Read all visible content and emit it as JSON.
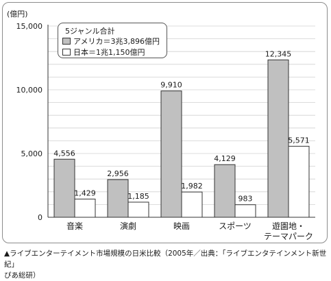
{
  "chart_data": {
    "type": "bar",
    "unit_label": "(億円)",
    "categories": [
      "音楽",
      "演劇",
      "映画",
      "スポーツ",
      "遊園地・テーマパーク"
    ],
    "category_lines": [
      [
        "音楽"
      ],
      [
        "演劇"
      ],
      [
        "映画"
      ],
      [
        "スポーツ"
      ],
      [
        "遊園地・",
        "テーマパーク"
      ]
    ],
    "series": [
      {
        "name": "アメリカ＝3兆3,896億円",
        "values": [
          4556,
          2956,
          9910,
          4129,
          12345
        ],
        "labels": [
          "4,556",
          "2,956",
          "9,910",
          "4,129",
          "12,345"
        ],
        "color": "#c0c0c0"
      },
      {
        "name": "日本＝1兆1,150億円",
        "values": [
          1429,
          1185,
          1982,
          983,
          5571
        ],
        "labels": [
          "1,429",
          "1,185",
          "1,982",
          "983",
          "5,571"
        ],
        "color": "#ffffff"
      }
    ],
    "ylim": [
      0,
      15000
    ],
    "yticks": [
      0,
      5000,
      10000,
      15000
    ],
    "ytick_labels": [
      "0",
      "5,000",
      "10,000",
      "15,000"
    ],
    "grid": true,
    "legend_title": "5ジャンル合計",
    "legend_placement": "top-left"
  },
  "caption": {
    "line1": "▲ライブエンターテイメント市場規模の日米比較（2005年／出典：「ライブエンタテインメント新世紀」",
    "line2": "ぴあ総研）"
  }
}
